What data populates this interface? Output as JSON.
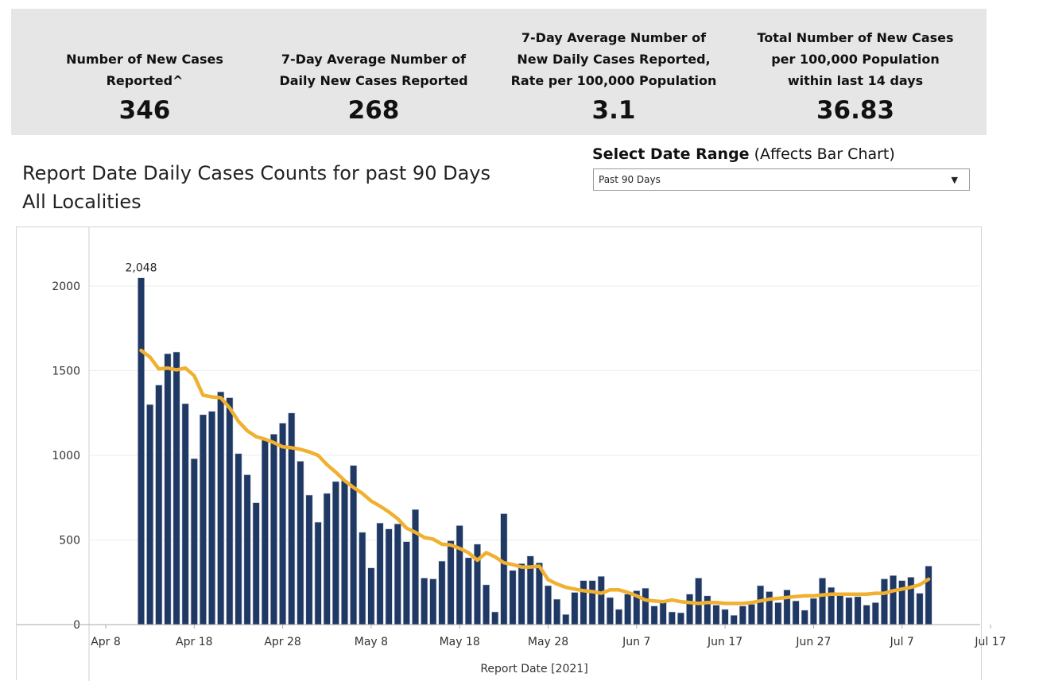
{
  "kpis": [
    {
      "label_lines": [
        "Number of New Cases",
        "Reported^"
      ],
      "value": "346"
    },
    {
      "label_lines": [
        "7-Day Average Number of",
        "Daily New Cases Reported"
      ],
      "value": "268"
    },
    {
      "label_lines": [
        "7-Day Average Number of",
        "New Daily Cases Reported,",
        "Rate per 100,000 Population"
      ],
      "value": "3.1"
    },
    {
      "label_lines": [
        "Total Number of New Cases",
        "per 100,000 Population",
        "within last 14 days"
      ],
      "value": "36.83"
    }
  ],
  "title_lines": [
    "Report Date Daily Cases Counts for past 90 Days",
    "All Localities"
  ],
  "date_range": {
    "label_bold": "Select Date Range",
    "label_rest": " (Affects Bar Chart)",
    "selected": "Past 90 Days"
  },
  "colors": {
    "bar": "#1f3864",
    "line": "#f0b030",
    "kpi_bg": "#e6e6e6"
  },
  "chart_data": {
    "type": "bar",
    "start_date": "2021-04-12",
    "x_ticks": [
      "Apr 8",
      "Apr 18",
      "Apr 28",
      "May 8",
      "May 18",
      "May 28",
      "Jun 7",
      "Jun 17",
      "Jun 27",
      "Jul 7",
      "Jul 17"
    ],
    "xlabel": "Report Date [2021]",
    "ylabel": "",
    "y_ticks": [
      0,
      500,
      1000,
      1500,
      2000
    ],
    "ylim": [
      0,
      2300
    ],
    "grid": true,
    "annotation": {
      "text": "2,048",
      "index": 0
    },
    "series": [
      {
        "type": "bar",
        "values": [
          2048,
          1300,
          1415,
          1600,
          1610,
          1305,
          980,
          1240,
          1260,
          1375,
          1340,
          1010,
          885,
          720,
          1090,
          1125,
          1190,
          1250,
          965,
          765,
          605,
          775,
          845,
          850,
          940,
          545,
          335,
          600,
          565,
          595,
          490,
          680,
          275,
          270,
          375,
          495,
          585,
          395,
          475,
          235,
          75,
          655,
          320,
          360,
          405,
          365,
          230,
          150,
          60,
          190,
          260,
          260,
          285,
          160,
          90,
          180,
          200,
          215,
          110,
          140,
          75,
          70,
          180,
          275,
          170,
          115,
          90,
          55,
          110,
          120,
          230,
          195,
          130,
          205,
          140,
          85,
          155,
          275,
          220,
          185,
          160,
          165,
          115,
          130,
          270,
          290,
          260,
          280,
          185,
          346
        ]
      },
      {
        "type": "line",
        "values": [
          1620,
          1580,
          1510,
          1515,
          1505,
          1515,
          1470,
          1355,
          1345,
          1340,
          1280,
          1200,
          1145,
          1110,
          1095,
          1075,
          1050,
          1045,
          1035,
          1020,
          1000,
          945,
          900,
          850,
          810,
          775,
          730,
          700,
          665,
          625,
          570,
          545,
          515,
          505,
          475,
          470,
          450,
          425,
          380,
          425,
          400,
          365,
          355,
          340,
          340,
          345,
          265,
          240,
          220,
          210,
          200,
          195,
          185,
          205,
          205,
          190,
          170,
          145,
          140,
          135,
          145,
          135,
          130,
          125,
          130,
          130,
          125,
          125,
          125,
          130,
          140,
          150,
          155,
          160,
          165,
          170,
          170,
          175,
          180,
          180,
          180,
          180,
          180,
          185,
          185,
          200,
          210,
          220,
          235,
          268
        ]
      }
    ]
  }
}
